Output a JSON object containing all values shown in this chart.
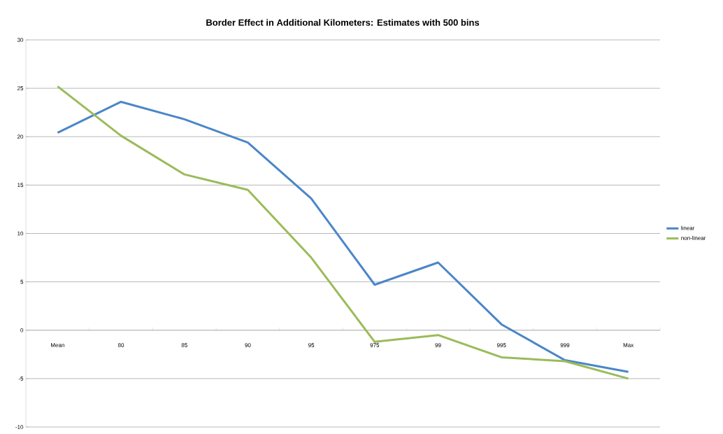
{
  "chart_data": {
    "type": "line",
    "title": "Border Effect in Additional Kilometers: Estimates with  500 bins",
    "categories": [
      "Mean",
      "80",
      "85",
      "90",
      "95",
      "975",
      "99",
      "995",
      "999",
      "Max"
    ],
    "series": [
      {
        "name": "linear",
        "color": "#4a86c8",
        "values": [
          20.4,
          23.6,
          21.8,
          19.4,
          13.6,
          4.7,
          7.0,
          0.6,
          -3.1,
          -4.3
        ]
      },
      {
        "name": "non-linear",
        "color": "#9bbb59",
        "values": [
          25.2,
          20.1,
          16.1,
          14.5,
          7.5,
          -1.2,
          -0.5,
          -2.8,
          -3.2,
          -5.0
        ]
      }
    ],
    "ylim": [
      -10,
      30
    ],
    "yticks": [
      -10,
      -5,
      0,
      5,
      10,
      15,
      20,
      25,
      30
    ],
    "grid": "y",
    "legend": "right",
    "marker": "none",
    "line_style": "solid"
  }
}
